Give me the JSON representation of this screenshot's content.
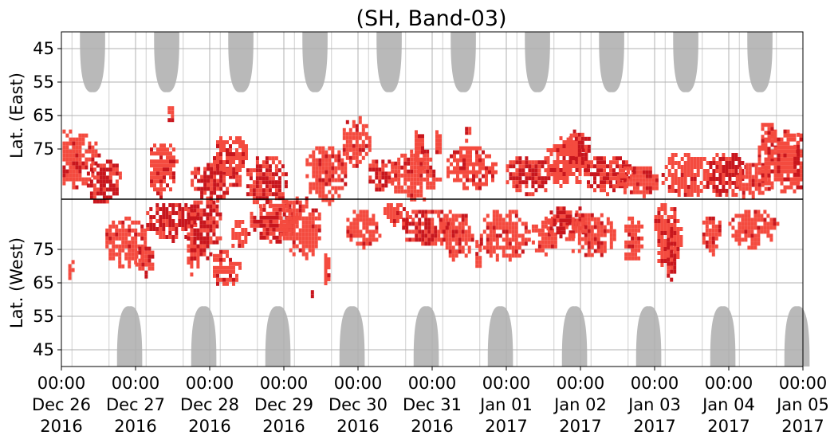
{
  "chart_data": {
    "type": "heatmap",
    "title": "(SH, Band-03)",
    "ylabel_top": "Lat. (East)",
    "ylabel_bottom": "Lat. (West)",
    "y_ticks_top": [
      "45",
      "55",
      "65",
      "75"
    ],
    "y_ticks_bottom": [
      "75",
      "65",
      "55",
      "45"
    ],
    "x_ticks": [
      [
        "00:00",
        "Dec 26",
        "2016"
      ],
      [
        "00:00",
        "Dec 27",
        "2016"
      ],
      [
        "00:00",
        "Dec 28",
        "2016"
      ],
      [
        "00:00",
        "Dec 29",
        "2016"
      ],
      [
        "00:00",
        "Dec 30",
        "2016"
      ],
      [
        "00:00",
        "Dec 31",
        "2016"
      ],
      [
        "00:00",
        "Jan 01",
        "2017"
      ],
      [
        "00:00",
        "Jan 02",
        "2017"
      ],
      [
        "00:00",
        "Jan 03",
        "2017"
      ],
      [
        "00:00",
        "Jan 04",
        "2017"
      ],
      [
        "00:00",
        "Jan 05",
        "2017"
      ]
    ],
    "x_range_days": [
      0,
      10
    ],
    "signed_latitude_range": [
      -90,
      90
    ],
    "grid": true,
    "colors": {
      "dark_red": "#c8161d",
      "red": "#f44b3f",
      "gray": "#b9b9b9",
      "grid": "#b0b0b0"
    },
    "gray_regions": {
      "top_centers_day": [
        0.42,
        1.42,
        2.42,
        3.42,
        4.42,
        5.42,
        6.42,
        7.42,
        8.42,
        9.42
      ],
      "bottom_centers_day": [
        0.92,
        1.92,
        2.92,
        3.92,
        4.92,
        5.92,
        6.92,
        7.92,
        8.92,
        9.92
      ],
      "edge_latitude": 58,
      "half_width_days": 0.17
    },
    "activity_blobs": [
      {
        "day": 0.15,
        "lat": 77,
        "half_width": 0.35,
        "half_height": 9,
        "intensity": "red"
      },
      {
        "day": 0.55,
        "lat": 84,
        "half_width": 0.25,
        "half_height": 7,
        "intensity": "dark"
      },
      {
        "day": 0.1,
        "lat": -70,
        "half_width": 0.05,
        "half_height": 3,
        "intensity": "red"
      },
      {
        "day": 0.85,
        "lat": -78,
        "half_width": 0.3,
        "half_height": 8,
        "intensity": "red"
      },
      {
        "day": 1.1,
        "lat": -72,
        "half_width": 0.15,
        "half_height": 5,
        "intensity": "red"
      },
      {
        "day": 1.35,
        "lat": 80,
        "half_width": 0.2,
        "half_height": 9,
        "intensity": "red"
      },
      {
        "day": 1.45,
        "lat": -84,
        "half_width": 0.35,
        "half_height": 6,
        "intensity": "dark"
      },
      {
        "day": 1.45,
        "lat": 64,
        "half_width": 0.06,
        "half_height": 3,
        "intensity": "dark"
      },
      {
        "day": 1.75,
        "lat": -74,
        "half_width": 0.1,
        "half_height": 6,
        "intensity": "red"
      },
      {
        "day": 2.05,
        "lat": 84,
        "half_width": 0.35,
        "half_height": 6,
        "intensity": "dark"
      },
      {
        "day": 1.9,
        "lat": -82,
        "half_width": 0.25,
        "half_height": 10,
        "intensity": "dark"
      },
      {
        "day": 2.2,
        "lat": -70,
        "half_width": 0.2,
        "half_height": 6,
        "intensity": "red"
      },
      {
        "day": 2.25,
        "lat": 76,
        "half_width": 0.25,
        "half_height": 6,
        "intensity": "red"
      },
      {
        "day": 2.75,
        "lat": 84,
        "half_width": 0.3,
        "half_height": 8,
        "intensity": "dark"
      },
      {
        "day": 2.85,
        "lat": -84,
        "half_width": 0.35,
        "half_height": 7,
        "intensity": "dark"
      },
      {
        "day": 2.4,
        "lat": -80,
        "half_width": 0.15,
        "half_height": 5,
        "intensity": "red"
      },
      {
        "day": 3.2,
        "lat": -82,
        "half_width": 0.3,
        "half_height": 10,
        "intensity": "red"
      },
      {
        "day": 3.55,
        "lat": 82,
        "half_width": 0.3,
        "half_height": 9,
        "intensity": "red"
      },
      {
        "day": 3.55,
        "lat": -70,
        "half_width": 0.05,
        "half_height": 5,
        "intensity": "red"
      },
      {
        "day": 3.35,
        "lat": -62,
        "half_width": 0.03,
        "half_height": 2,
        "intensity": "red"
      },
      {
        "day": 3.95,
        "lat": 72,
        "half_width": 0.2,
        "half_height": 8,
        "intensity": "red"
      },
      {
        "day": 4.05,
        "lat": -82,
        "half_width": 0.25,
        "half_height": 6,
        "intensity": "red"
      },
      {
        "day": 4.3,
        "lat": 82,
        "half_width": 0.2,
        "half_height": 5,
        "intensity": "dark"
      },
      {
        "day": 4.5,
        "lat": -86,
        "half_width": 0.2,
        "half_height": 4,
        "intensity": "red"
      },
      {
        "day": 4.75,
        "lat": 82,
        "half_width": 0.35,
        "half_height": 8,
        "intensity": "red"
      },
      {
        "day": 4.8,
        "lat": 75,
        "half_width": 0.08,
        "half_height": 8,
        "intensity": "red"
      },
      {
        "day": 4.9,
        "lat": -82,
        "half_width": 0.35,
        "half_height": 6,
        "intensity": "dark"
      },
      {
        "day": 5.3,
        "lat": -80,
        "half_width": 0.25,
        "half_height": 8,
        "intensity": "red"
      },
      {
        "day": 5.5,
        "lat": 80,
        "half_width": 0.35,
        "half_height": 7,
        "intensity": "red"
      },
      {
        "day": 5.6,
        "lat": -74,
        "half_width": 0.06,
        "half_height": 5,
        "intensity": "red"
      },
      {
        "day": 5.05,
        "lat": 72,
        "half_width": 0.05,
        "half_height": 5,
        "intensity": "red"
      },
      {
        "day": 5.45,
        "lat": 70,
        "half_width": 0.05,
        "half_height": 4,
        "intensity": "red"
      },
      {
        "day": 5.95,
        "lat": -80,
        "half_width": 0.35,
        "half_height": 8,
        "intensity": "red"
      },
      {
        "day": 6.3,
        "lat": 82,
        "half_width": 0.35,
        "half_height": 6,
        "intensity": "dark"
      },
      {
        "day": 6.5,
        "lat": -80,
        "half_width": 0.2,
        "half_height": 6,
        "intensity": "red"
      },
      {
        "day": 6.8,
        "lat": 78,
        "half_width": 0.3,
        "half_height": 8,
        "intensity": "red"
      },
      {
        "day": 6.8,
        "lat": -84,
        "half_width": 0.3,
        "half_height": 5,
        "intensity": "dark"
      },
      {
        "day": 6.85,
        "lat": 72,
        "half_width": 0.08,
        "half_height": 4,
        "intensity": "red"
      },
      {
        "day": 7.1,
        "lat": -80,
        "half_width": 0.35,
        "half_height": 7,
        "intensity": "red"
      },
      {
        "day": 7.35,
        "lat": 82,
        "half_width": 0.35,
        "half_height": 6,
        "intensity": "dark"
      },
      {
        "day": 7.0,
        "lat": 74,
        "half_width": 0.12,
        "half_height": 5,
        "intensity": "dark"
      },
      {
        "day": 7.7,
        "lat": -78,
        "half_width": 0.15,
        "half_height": 8,
        "intensity": "red"
      },
      {
        "day": 7.75,
        "lat": 84,
        "half_width": 0.3,
        "half_height": 5,
        "intensity": "red"
      },
      {
        "day": 8.15,
        "lat": -80,
        "half_width": 0.2,
        "half_height": 10,
        "intensity": "red"
      },
      {
        "day": 8.2,
        "lat": -74,
        "half_width": 0.08,
        "half_height": 8,
        "intensity": "dark"
      },
      {
        "day": 8.4,
        "lat": 82,
        "half_width": 0.35,
        "half_height": 7,
        "intensity": "red"
      },
      {
        "day": 8.75,
        "lat": -80,
        "half_width": 0.15,
        "half_height": 6,
        "intensity": "red"
      },
      {
        "day": 8.95,
        "lat": 82,
        "half_width": 0.3,
        "half_height": 7,
        "intensity": "dark"
      },
      {
        "day": 9.3,
        "lat": 84,
        "half_width": 0.25,
        "half_height": 6,
        "intensity": "red"
      },
      {
        "day": 9.3,
        "lat": -82,
        "half_width": 0.35,
        "half_height": 6,
        "intensity": "red"
      },
      {
        "day": 9.75,
        "lat": 78,
        "half_width": 0.4,
        "half_height": 10,
        "intensity": "red"
      },
      {
        "day": 9.95,
        "lat": 77,
        "half_width": 0.12,
        "half_height": 8,
        "intensity": "dark"
      },
      {
        "day": 9.5,
        "lat": 72,
        "half_width": 0.15,
        "half_height": 6,
        "intensity": "red"
      }
    ]
  }
}
